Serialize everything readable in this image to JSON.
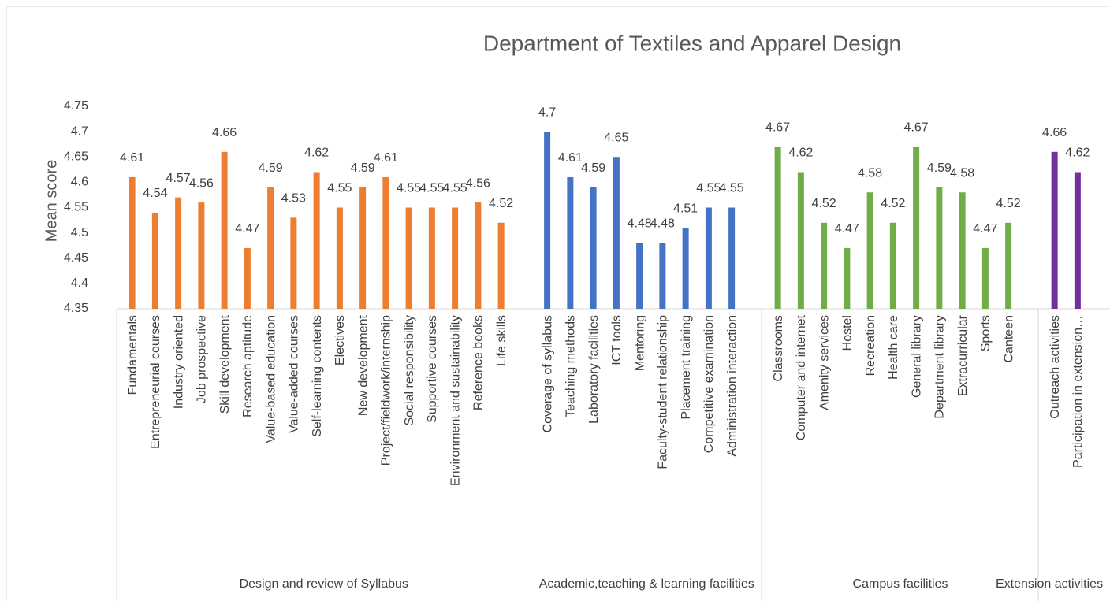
{
  "chart_data": {
    "type": "bar",
    "title": "Department of Textiles and Apparel Design",
    "y_label": "Mean score",
    "ylim": [
      4.35,
      4.75
    ],
    "yticks": [
      4.35,
      4.4,
      4.45,
      4.5,
      4.55,
      4.6,
      4.65,
      4.7,
      4.75
    ],
    "grid": false,
    "groups": [
      {
        "name": "Design and review of Syllabus",
        "color": "#ED7D31",
        "categories": [
          "Fundamentals",
          "Entrepreneurial courses",
          "Industry oriented",
          "Job prospective",
          "Skill development",
          "Research aptitude",
          "Value-based education",
          "Value-added courses",
          "Self-learning contents",
          "Electives",
          "New development",
          "Project/fieldwork/internship",
          "Social responsibility",
          "Supportive courses",
          "Environment and sustainability",
          "Reference books",
          "Life skills"
        ],
        "values": [
          4.61,
          4.54,
          4.57,
          4.56,
          4.66,
          4.47,
          4.59,
          4.53,
          4.62,
          4.55,
          4.59,
          4.61,
          4.55,
          4.55,
          4.55,
          4.56,
          4.52
        ]
      },
      {
        "name": "Academic,teaching & learning facilities",
        "color": "#4472C4",
        "categories": [
          "Coverage of syllabus",
          "Teaching methods",
          "Laboratory facilities",
          "ICT tools",
          "Mentoring",
          "Faculty-student relationship",
          "Placement training",
          "Competitive examination",
          "Administration interaction"
        ],
        "values": [
          4.7,
          4.61,
          4.59,
          4.65,
          4.48,
          4.48,
          4.51,
          4.55,
          4.55
        ]
      },
      {
        "name": "Campus facilities",
        "color": "#70AD47",
        "categories": [
          "Classrooms",
          "Computer and internet",
          "Amenity services",
          "Hostel",
          "Recreation",
          "Health care",
          "General library",
          "Department library",
          "Extracurricular",
          "Sports",
          "Canteen"
        ],
        "values": [
          4.67,
          4.62,
          4.52,
          4.47,
          4.58,
          4.52,
          4.67,
          4.59,
          4.58,
          4.47,
          4.52
        ]
      },
      {
        "name": "Extension activities",
        "color": "#7030A0",
        "categories": [
          "Outreach activities",
          "Participation in extension…"
        ],
        "values": [
          4.66,
          4.62
        ]
      }
    ]
  }
}
